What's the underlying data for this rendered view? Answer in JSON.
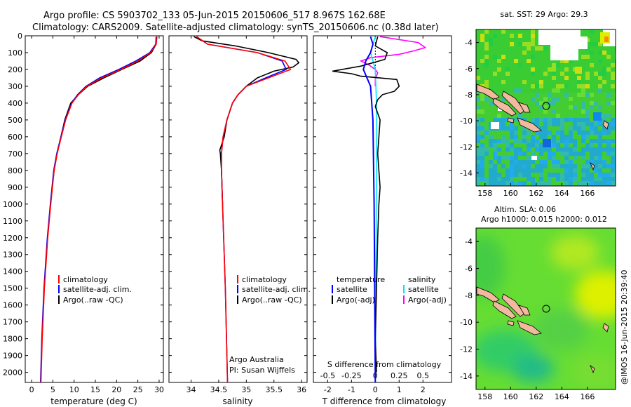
{
  "header": {
    "line1": "Argo profile: CS 5903702_133 05-Jun-2015 20150606_517 8.967S 162.68E",
    "line2": "Climatology: CARS2009. Satellite-adjusted climatology: synTS_20150606.nc (0.38d later)"
  },
  "side_stamp": "@IMOS 16-Jun-2015 20:39:40",
  "colors": {
    "climatology": "#ff0000",
    "satellite": "#0000ff",
    "argo": "#000000",
    "salinity_sat": "#00e5ff",
    "salinity_argo": "#ff00ff"
  },
  "chart_data": [
    {
      "type": "line",
      "panel": "temperature",
      "xlabel": "temperature (deg C)",
      "ylabel": "",
      "xlim": [
        -1.5,
        31
      ],
      "ylim": [
        2060,
        0
      ],
      "xticks": [
        0,
        5,
        10,
        15,
        20,
        25,
        30
      ],
      "yticks": [
        0,
        100,
        200,
        300,
        400,
        500,
        600,
        700,
        800,
        900,
        1000,
        1100,
        1200,
        1300,
        1400,
        1500,
        1600,
        1700,
        1800,
        1900,
        2000
      ],
      "legend": {
        "placement": "lower-center",
        "entries": [
          "climatology",
          "satellite-adj. clim.",
          "Argo(..raw -QC)"
        ]
      },
      "series": [
        {
          "name": "climatology",
          "color": "#ff0000",
          "depth": [
            5,
            50,
            100,
            150,
            200,
            250,
            300,
            350,
            400,
            500,
            600,
            700,
            800,
            1000,
            1200,
            1500,
            1800,
            2060
          ],
          "values": [
            29.5,
            29.3,
            28.0,
            25.0,
            21.0,
            16.5,
            13.0,
            11.0,
            9.5,
            8.0,
            7.0,
            6.0,
            5.3,
            4.5,
            3.8,
            3.0,
            2.5,
            2.2
          ]
        },
        {
          "name": "satellite-adj. clim.",
          "color": "#0000ff",
          "depth": [
            5,
            50,
            100,
            150,
            200,
            250,
            300,
            350,
            400,
            500,
            600,
            700,
            800,
            1000,
            1200,
            1500,
            1800,
            2060
          ],
          "values": [
            29.3,
            29.2,
            27.8,
            24.5,
            20.5,
            16.0,
            12.8,
            10.8,
            9.4,
            7.9,
            6.9,
            5.9,
            5.2,
            4.4,
            3.7,
            2.9,
            2.4,
            2.1
          ]
        },
        {
          "name": "Argo(..raw -QC)",
          "color": "#000000",
          "depth": [
            5,
            50,
            100,
            150,
            200,
            250,
            300,
            350,
            400,
            500,
            600,
            700,
            800,
            1000
          ],
          "values": [
            29.4,
            29.3,
            28.2,
            25.5,
            21.2,
            17.0,
            13.2,
            11.0,
            9.2,
            7.8,
            6.9,
            6.0,
            5.3,
            4.4
          ]
        }
      ]
    },
    {
      "type": "line",
      "panel": "salinity",
      "xlabel": "salinity",
      "xlim": [
        33.6,
        36.1
      ],
      "ylim": [
        2060,
        0
      ],
      "xticks": [
        34,
        34.5,
        35,
        35.5,
        36
      ],
      "legend": {
        "placement": "lower-center",
        "entries": [
          "climatology",
          "satellite-adj. clim.",
          "Argo(..raw -QC)"
        ]
      },
      "annotations": [
        "Argo Australia",
        "PI: Susan Wijffels"
      ],
      "series": [
        {
          "name": "climatology",
          "color": "#ff0000",
          "depth": [
            5,
            50,
            100,
            150,
            200,
            250,
            300,
            350,
            400,
            500,
            600,
            700,
            800,
            1000,
            1500,
            2060
          ],
          "values": [
            34.1,
            34.3,
            35.2,
            35.7,
            35.8,
            35.4,
            35.0,
            34.85,
            34.75,
            34.65,
            34.58,
            34.55,
            34.55,
            34.57,
            34.62,
            34.66
          ]
        },
        {
          "name": "satellite-adj. clim.",
          "color": "#0000ff",
          "depth": [
            5,
            50,
            100,
            150,
            200,
            250,
            300,
            350,
            400,
            500,
            600,
            700,
            800,
            1000,
            1500,
            2060
          ],
          "values": [
            34.1,
            34.3,
            35.2,
            35.65,
            35.72,
            35.35,
            35.0,
            34.85,
            34.75,
            34.65,
            34.58,
            34.55,
            34.55,
            34.57,
            34.62,
            34.66
          ]
        },
        {
          "name": "Argo(..raw -QC)",
          "color": "#000000",
          "depth": [
            5,
            30,
            60,
            100,
            140,
            160,
            185,
            210,
            250,
            300,
            350,
            400,
            500,
            600,
            680,
            700,
            800,
            1000
          ],
          "values": [
            34.05,
            34.2,
            34.8,
            35.4,
            35.9,
            35.95,
            35.85,
            35.5,
            35.2,
            35.0,
            34.85,
            34.75,
            34.65,
            34.6,
            34.52,
            34.53,
            34.55,
            34.57
          ]
        }
      ]
    },
    {
      "type": "line",
      "panel": "difference",
      "xlabel": "T difference from climatology",
      "xlabel_top": "S difference from climatology",
      "xlim": [
        -2.6,
        3.2
      ],
      "ylim": [
        2060,
        0
      ],
      "xticks": [
        -2,
        -1,
        0,
        1,
        2
      ],
      "xticks_s": [
        -0.5,
        -0.25,
        0,
        0.25,
        0.5
      ],
      "legend": {
        "placement": "lower-center",
        "titles": [
          "temperature",
          "salinity"
        ],
        "entries": [
          "satellite",
          "Argo(-adj)",
          "satellite",
          "Argo(-adj)"
        ]
      },
      "series": [
        {
          "name": "satellite",
          "color": "#0000ff",
          "depth": [
            5,
            50,
            100,
            150,
            200,
            300,
            500,
            1000,
            2060
          ],
          "values": [
            -0.2,
            -0.1,
            -0.2,
            -0.4,
            -0.5,
            -0.2,
            -0.1,
            -0.05,
            0
          ]
        },
        {
          "name": "Argo(-adj)",
          "color": "#000000",
          "depth": [
            5,
            60,
            100,
            140,
            180,
            210,
            225,
            240,
            260,
            300,
            330,
            350,
            380,
            420,
            500,
            700,
            900,
            1000,
            1200,
            1500,
            1800,
            2000
          ],
          "values": [
            0.1,
            0.0,
            0.5,
            0.4,
            -0.6,
            -1.8,
            -1.0,
            -0.6,
            0.9,
            1.0,
            0.8,
            0.3,
            0.1,
            0.0,
            0.2,
            0.1,
            0.2,
            0.15,
            0.1,
            0.05,
            0.0,
            0.05
          ]
        },
        {
          "name": "satellite",
          "color": "#00e5ff",
          "depth": [
            5,
            50,
            100,
            150,
            200,
            400,
            800,
            1500,
            2060
          ],
          "values": [
            0.0,
            -0.1,
            -0.2,
            -0.1,
            0.0,
            0.05,
            0.05,
            0.02,
            0
          ]
        },
        {
          "name": "Argo(-adj)",
          "color": "#ff00ff",
          "depth": [
            5,
            40,
            70,
            90,
            110,
            130,
            150,
            170,
            200,
            220,
            260,
            300
          ],
          "values": [
            0.2,
            1.8,
            2.1,
            1.6,
            1.0,
            -0.2,
            -0.6,
            -0.3,
            0.0,
            0.1,
            0.0,
            0.0
          ]
        }
      ]
    },
    {
      "type": "heatmap",
      "panel": "sst-map",
      "title": "sat. SST: 29 Argo: 29.3",
      "xlim": [
        157.3,
        168.2
      ],
      "ylim": [
        -15,
        -3
      ],
      "xticks": [
        158,
        160,
        162,
        164,
        166
      ],
      "yticks": [
        -4,
        -6,
        -8,
        -10,
        -12,
        -14
      ],
      "marker": [
        162.68,
        -8.967
      ]
    },
    {
      "type": "heatmap",
      "panel": "sla-map",
      "title": "Altim. SLA: 0.06",
      "subtitle": "Argo h1000: 0.015 h2000: 0.012",
      "xlim": [
        157.3,
        168.2
      ],
      "ylim": [
        -15,
        -3
      ],
      "xticks": [
        158,
        160,
        162,
        164,
        166
      ],
      "yticks": [
        -4,
        -6,
        -8,
        -10,
        -12,
        -14
      ],
      "marker": [
        162.68,
        -8.967
      ]
    }
  ]
}
